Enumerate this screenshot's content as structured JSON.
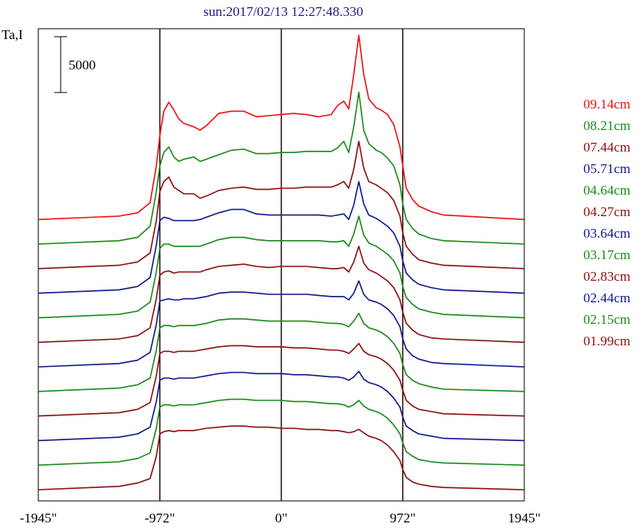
{
  "chart_data": {
    "type": "line",
    "title": "sun:2017/02/13 12:27:48.330",
    "ylabel": "Ta,I",
    "scale_bar_label": "5000",
    "scale_bar_value": 5000,
    "x_ticks": [
      {
        "value": -1945,
        "label": "-1945\""
      },
      {
        "value": -972,
        "label": "-972\""
      },
      {
        "value": 0,
        "label": "0\""
      },
      {
        "value": 972,
        "label": "972\""
      },
      {
        "value": 1945,
        "label": "1945\""
      }
    ],
    "xlim": [
      -1945,
      1945
    ],
    "vertical_lines": [
      -972,
      0,
      972
    ],
    "grid": false,
    "legend_position": "right",
    "series_offset": 2200,
    "x": [
      -1945,
      -1300,
      -1150,
      -1050,
      -1000,
      -972,
      -940,
      -900,
      -860,
      -820,
      -780,
      -700,
      -650,
      -600,
      -500,
      -400,
      -300,
      -200,
      -100,
      0,
      100,
      200,
      300,
      400,
      450,
      500,
      540,
      580,
      620,
      660,
      700,
      760,
      800,
      850,
      900,
      950,
      972,
      1000,
      1050,
      1100,
      1200,
      1300,
      1945
    ],
    "series": [
      {
        "name": "09.14cm",
        "color": "#ee1111",
        "values": [
          0,
          300,
          600,
          1500,
          4800,
          7500,
          9700,
          10500,
          9800,
          9000,
          8600,
          8300,
          8000,
          8400,
          9500,
          9700,
          9700,
          9200,
          9300,
          9400,
          9500,
          9400,
          9200,
          9400,
          10200,
          10600,
          9900,
          13000,
          16500,
          13000,
          10800,
          10000,
          9800,
          9400,
          8500,
          6500,
          4800,
          2800,
          1800,
          1200,
          700,
          400,
          0
        ]
      },
      {
        "name": "08.21cm",
        "color": "#1a8a1a",
        "values": [
          0,
          300,
          600,
          1600,
          4700,
          7000,
          8200,
          8700,
          7800,
          7400,
          7600,
          7800,
          7400,
          7600,
          8000,
          8400,
          8500,
          8100,
          8100,
          8200,
          8200,
          8300,
          8300,
          8300,
          8600,
          9200,
          8200,
          10500,
          13600,
          10200,
          9000,
          8400,
          8200,
          7700,
          7000,
          5300,
          3600,
          2200,
          1400,
          900,
          500,
          300,
          0
        ]
      },
      {
        "name": "07.44cm",
        "color": "#8b1010",
        "values": [
          0,
          300,
          600,
          1400,
          4300,
          6900,
          7800,
          8200,
          7300,
          7000,
          6700,
          6700,
          6300,
          6500,
          7000,
          7200,
          7300,
          7100,
          7100,
          7200,
          7200,
          7300,
          7300,
          7300,
          7500,
          7800,
          7200,
          8900,
          11400,
          9000,
          7800,
          7500,
          7200,
          6800,
          6100,
          4700,
          3200,
          2000,
          1300,
          800,
          500,
          300,
          0
        ]
      },
      {
        "name": "05.71cm",
        "color": "#101a8a",
        "values": [
          0,
          300,
          600,
          1400,
          4300,
          6500,
          6800,
          6700,
          6500,
          6500,
          6500,
          6500,
          6600,
          6800,
          7200,
          7500,
          7500,
          7100,
          7000,
          7000,
          7000,
          7000,
          7000,
          6900,
          7000,
          7100,
          6600,
          7900,
          10000,
          8000,
          7000,
          6700,
          6400,
          6000,
          5400,
          4200,
          2900,
          1800,
          1200,
          800,
          500,
          300,
          0
        ]
      },
      {
        "name": "04.64cm",
        "color": "#1a8a1a",
        "values": [
          0,
          300,
          600,
          1400,
          4100,
          6200,
          6600,
          6600,
          6400,
          6400,
          6400,
          6400,
          6400,
          6600,
          7000,
          7200,
          7200,
          7000,
          6900,
          6900,
          6900,
          6900,
          6900,
          6800,
          6800,
          6900,
          6400,
          7500,
          9100,
          7400,
          6700,
          6400,
          6100,
          5700,
          5100,
          4000,
          2800,
          1800,
          1200,
          800,
          500,
          300,
          0
        ]
      },
      {
        "name": "04.27cm",
        "color": "#8b1010",
        "values": [
          0,
          300,
          600,
          1300,
          3900,
          6000,
          6300,
          6400,
          6200,
          6300,
          6300,
          6300,
          6300,
          6500,
          6800,
          6900,
          7000,
          6800,
          6700,
          6800,
          6800,
          6800,
          6700,
          6600,
          6600,
          6700,
          6300,
          7200,
          8600,
          7100,
          6500,
          6200,
          5900,
          5500,
          4900,
          3800,
          2700,
          1700,
          1100,
          700,
          400,
          300,
          0
        ]
      },
      {
        "name": "03.64cm",
        "color": "#101a8a",
        "values": [
          0,
          300,
          600,
          1300,
          3800,
          5900,
          6000,
          6100,
          6000,
          6000,
          6100,
          6100,
          6200,
          6300,
          6600,
          6700,
          6700,
          6600,
          6500,
          6500,
          6500,
          6500,
          6400,
          6300,
          6300,
          6300,
          6000,
          6600,
          7700,
          6500,
          6000,
          5800,
          5600,
          5200,
          4600,
          3600,
          2500,
          1600,
          1000,
          700,
          400,
          300,
          0
        ]
      },
      {
        "name": "03.17cm",
        "color": "#1a8a1a",
        "values": [
          0,
          300,
          600,
          1200,
          3700,
          5700,
          5900,
          5900,
          5800,
          5900,
          5900,
          5900,
          6000,
          6100,
          6400,
          6500,
          6500,
          6400,
          6300,
          6300,
          6300,
          6300,
          6200,
          6100,
          6100,
          6000,
          5800,
          6300,
          7000,
          6100,
          5700,
          5500,
          5300,
          4900,
          4300,
          3400,
          2400,
          1500,
          1000,
          700,
          400,
          200,
          0
        ]
      },
      {
        "name": "02.83cm",
        "color": "#8b1010",
        "values": [
          0,
          300,
          600,
          1200,
          3600,
          5600,
          5800,
          5800,
          5700,
          5800,
          5800,
          5800,
          5900,
          6000,
          6200,
          6300,
          6300,
          6200,
          6200,
          6200,
          6100,
          6100,
          6000,
          5900,
          5900,
          5800,
          5600,
          6000,
          6500,
          5800,
          5500,
          5300,
          5100,
          4700,
          4100,
          3200,
          2300,
          1400,
          900,
          600,
          400,
          200,
          0
        ]
      },
      {
        "name": "02.44cm",
        "color": "#101a8a",
        "values": [
          0,
          300,
          600,
          1200,
          3500,
          5400,
          5600,
          5600,
          5500,
          5600,
          5600,
          5600,
          5700,
          5800,
          6000,
          6100,
          6100,
          6000,
          6000,
          6000,
          5900,
          5900,
          5800,
          5700,
          5700,
          5600,
          5400,
          5700,
          6200,
          5500,
          5200,
          5000,
          4800,
          4400,
          3800,
          3000,
          2100,
          1300,
          900,
          600,
          400,
          200,
          0
        ]
      },
      {
        "name": "02.15cm",
        "color": "#1a8a1a",
        "values": [
          0,
          300,
          600,
          1100,
          3300,
          5200,
          5400,
          5400,
          5300,
          5400,
          5400,
          5400,
          5500,
          5600,
          5800,
          5900,
          5900,
          5800,
          5800,
          5800,
          5700,
          5700,
          5600,
          5500,
          5500,
          5400,
          5200,
          5400,
          5800,
          5300,
          5000,
          4800,
          4600,
          4200,
          3600,
          2800,
          2000,
          1200,
          800,
          500,
          300,
          200,
          0
        ]
      },
      {
        "name": "01.99cm",
        "color": "#8b1010",
        "values": [
          0,
          300,
          600,
          1000,
          3000,
          5000,
          5200,
          5300,
          5200,
          5300,
          5300,
          5300,
          5400,
          5500,
          5600,
          5700,
          5700,
          5600,
          5600,
          5500,
          5500,
          5400,
          5400,
          5300,
          5300,
          5200,
          5100,
          5200,
          5400,
          5100,
          4800,
          4600,
          4400,
          4000,
          3400,
          2600,
          1800,
          1100,
          700,
          500,
          300,
          200,
          0
        ]
      }
    ]
  }
}
